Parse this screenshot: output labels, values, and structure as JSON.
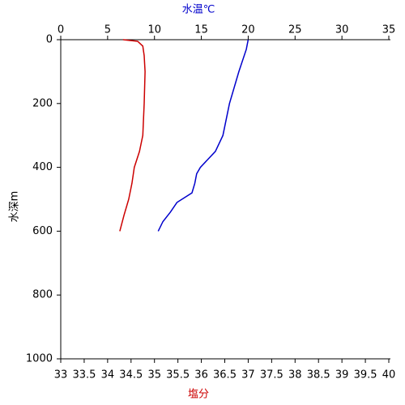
{
  "chart_data": {
    "type": "line",
    "xlabel": "塩分",
    "x2label": "水温℃",
    "ylabel": "水深m",
    "xlim": [
      33,
      40
    ],
    "xticks": [
      33,
      33.5,
      34,
      34.5,
      35,
      35.5,
      36,
      36.5,
      37,
      37.5,
      38,
      38.5,
      39,
      39.5,
      40
    ],
    "x2lim": [
      0,
      35
    ],
    "x2ticks": [
      0,
      5,
      10,
      15,
      20,
      25,
      30,
      35
    ],
    "ylim": [
      0,
      1000
    ],
    "yticks": [
      0,
      200,
      400,
      600,
      800,
      1000
    ],
    "y_inverted": true,
    "xlabel_color": "#cc0000",
    "x2label_color": "#0000cc",
    "series": [
      {
        "color": "#0000cc",
        "axis": "x2",
        "x": [
          20.0,
          19.8,
          19.0,
          18.0,
          17.3,
          16.5,
          14.9,
          14.5,
          14.3,
          14.0,
          12.4,
          11.7,
          10.9,
          10.4
        ],
        "y": [
          0,
          30,
          100,
          200,
          300,
          350,
          400,
          420,
          450,
          480,
          510,
          540,
          570,
          600
        ]
      },
      {
        "color": "#cc0000",
        "axis": "x",
        "x": [
          34.33,
          34.64,
          34.75,
          34.78,
          34.8,
          34.78,
          34.75,
          34.68,
          34.57,
          34.52,
          34.45,
          34.35,
          34.26
        ],
        "y": [
          0,
          5,
          20,
          50,
          100,
          200,
          300,
          350,
          400,
          450,
          500,
          550,
          600
        ]
      }
    ]
  }
}
